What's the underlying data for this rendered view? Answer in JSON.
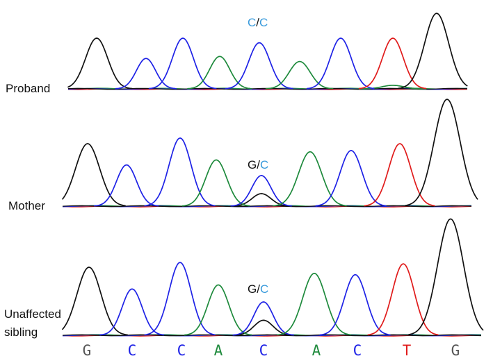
{
  "colors": {
    "G": "#111111",
    "C": "#1e22e6",
    "A": "#1e8a3c",
    "T": "#e01b1b",
    "call_C": "#3a9bdc",
    "separator": "#111111"
  },
  "bases": [
    "G",
    "C",
    "C",
    "A",
    "C",
    "A",
    "C",
    "T",
    "G"
  ],
  "rows": [
    {
      "label": "Proband",
      "genotype": {
        "allele1": "C",
        "sep": "/",
        "allele2": "C"
      },
      "peaks": [
        {
          "base": "G",
          "height": 1.0
        },
        {
          "base": "C",
          "height": 0.6
        },
        {
          "base": "C",
          "height": 1.0
        },
        {
          "base": "A",
          "height": 0.64
        },
        {
          "base": "C",
          "height": 0.91
        },
        {
          "base": "A",
          "height": 0.54
        },
        {
          "base": "C",
          "height": 1.0
        },
        {
          "base": "T",
          "height": 1.0
        },
        {
          "base": "G",
          "height": 1.49
        }
      ],
      "minor": [
        {
          "base": "A",
          "peak_index": 7,
          "height": 0.07
        }
      ]
    },
    {
      "label": "Mother",
      "genotype": {
        "allele1": "G",
        "sep": "/",
        "allele2": "C"
      },
      "peaks": [
        {
          "base": "G",
          "height": 1.0
        },
        {
          "base": "C",
          "height": 0.66
        },
        {
          "base": "C",
          "height": 1.09
        },
        {
          "base": "A",
          "height": 0.74
        },
        {
          "base": "C",
          "height": 0.49
        },
        {
          "base": "A",
          "height": 0.87
        },
        {
          "base": "C",
          "height": 0.89
        },
        {
          "base": "T",
          "height": 1.0
        },
        {
          "base": "G",
          "height": 1.71
        }
      ],
      "minor": [
        {
          "base": "G",
          "peak_index": 4,
          "height": 0.2
        }
      ]
    },
    {
      "label": "Unaffected sibling",
      "genotype": {
        "allele1": "G",
        "sep": "/",
        "allele2": "C"
      },
      "peaks": [
        {
          "base": "G",
          "height": 1.0
        },
        {
          "base": "C",
          "height": 0.68
        },
        {
          "base": "C",
          "height": 1.07
        },
        {
          "base": "A",
          "height": 0.74
        },
        {
          "base": "C",
          "height": 0.49
        },
        {
          "base": "A",
          "height": 0.91
        },
        {
          "base": "C",
          "height": 0.89
        },
        {
          "base": "T",
          "height": 1.05
        },
        {
          "base": "G",
          "height": 1.71
        }
      ],
      "minor": [
        {
          "base": "G",
          "peak_index": 4,
          "height": 0.22
        }
      ]
    }
  ]
}
